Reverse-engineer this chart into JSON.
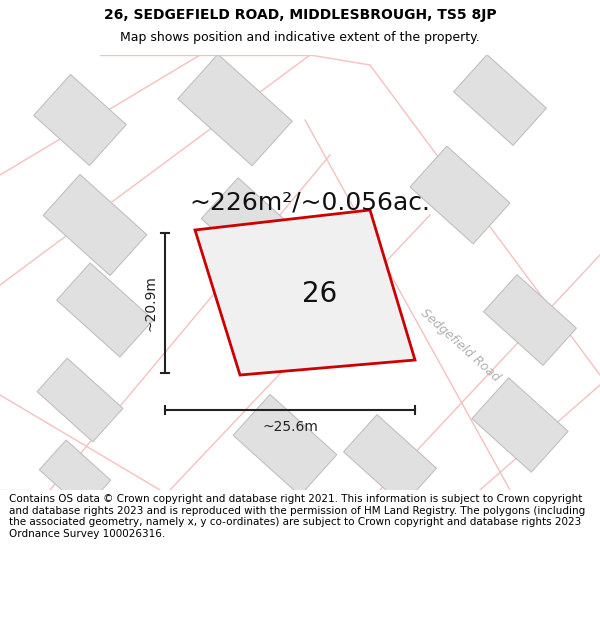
{
  "title_line1": "26, SEDGEFIELD ROAD, MIDDLESBROUGH, TS5 8JP",
  "title_line2": "Map shows position and indicative extent of the property.",
  "area_text": "~226m²/~0.056ac.",
  "dim_width": "~25.6m",
  "dim_height": "~20.9m",
  "property_number": "26",
  "road_label": "Sedgefield Road",
  "footer_text": "Contains OS data © Crown copyright and database right 2021. This information is subject to Crown copyright and database rights 2023 and is reproduced with the permission of HM Land Registry. The polygons (including the associated geometry, namely x, y co-ordinates) are subject to Crown copyright and database rights 2023 Ordnance Survey 100026316.",
  "bg_color": "#ffffff",
  "map_bg": "#f2f1f1",
  "building_color": "#e0e0e0",
  "building_edge": "#c0c0c0",
  "road_line_color": "#f5c0c0",
  "road_area_color": "#ffffff",
  "property_fill": "#f0f0f0",
  "property_edge": "#cc0000",
  "dim_color": "#222222",
  "title_color": "#000000",
  "footer_color": "#000000",
  "road_label_color": "#b0b0b0",
  "title_fontsize": 10,
  "subtitle_fontsize": 9,
  "area_fontsize": 18,
  "number_fontsize": 20,
  "dim_fontsize": 10,
  "road_label_fontsize": 9,
  "footer_fontsize": 7.5
}
